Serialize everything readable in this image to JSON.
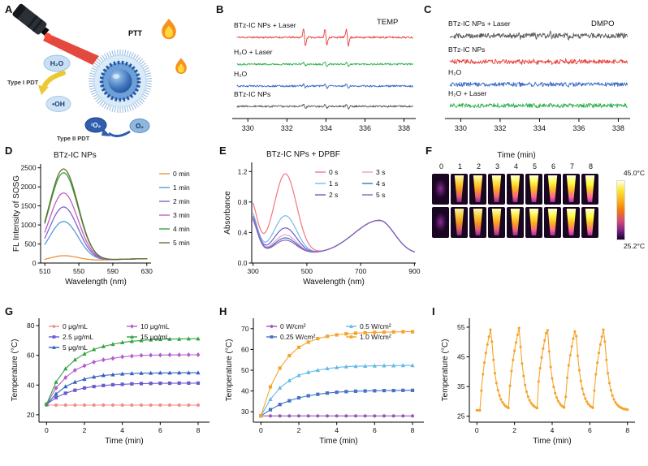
{
  "panels": {
    "A": {
      "letter": "A",
      "labels": {
        "ptt": "PTT",
        "h2o": "H₂O",
        "type1": "Type I PDT",
        "oh": "•OH",
        "singlet_o2": "¹O₂",
        "o2": "O₂",
        "type2": "Type II PDT"
      }
    },
    "B": {
      "letter": "B"
    },
    "C": {
      "letter": "C"
    },
    "D": {
      "letter": "D"
    },
    "E": {
      "letter": "E"
    },
    "F": {
      "letter": "F"
    },
    "G": {
      "letter": "G"
    },
    "H": {
      "letter": "H"
    },
    "I": {
      "letter": "I"
    }
  },
  "chart_data": [
    {
      "panel": "B",
      "type": "line",
      "subtype": "esr-spectra",
      "annotation": "TEMP",
      "xlim": [
        329.2,
        338.6
      ],
      "xlabel_ticks": [
        330,
        332,
        334,
        336,
        338
      ],
      "peaks": [
        332.9,
        334.0,
        335.1
      ],
      "traces": [
        {
          "label": "BTz-IC NPs + Laser",
          "color": "#e8403a",
          "amp": 30,
          "noise": 1.1
        },
        {
          "label": "H₂O + Laser",
          "color": "#2eb04c",
          "amp": 7,
          "noise": 1.1
        },
        {
          "label": "H₂O",
          "color": "#3a6cc6",
          "amp": 7,
          "noise": 1.1
        },
        {
          "label": "BTz-IC NPs",
          "color": "#5a5a5a",
          "amp": 7,
          "noise": 1.1
        }
      ]
    },
    {
      "panel": "C",
      "type": "line",
      "subtype": "esr-spectra",
      "annotation": "DMPO",
      "xlim": [
        329.2,
        338.6
      ],
      "xlabel_ticks": [
        330,
        332,
        334,
        336,
        338
      ],
      "peaks": [
        333.0,
        333.8,
        334.6,
        335.4
      ],
      "traces": [
        {
          "label": "BTz-IC NPs + Laser",
          "color": "#5a5a5a",
          "amp": 8,
          "noise": 3.2
        },
        {
          "label": "BTz-IC NPs",
          "color": "#e8403a",
          "amp": 5,
          "noise": 2.8
        },
        {
          "label": "H₂O",
          "color": "#3a6cc6",
          "amp": 3,
          "noise": 2.6
        },
        {
          "label": "H₂O + Laser",
          "color": "#2eb04c",
          "amp": 3,
          "noise": 2.6
        }
      ]
    },
    {
      "panel": "D",
      "type": "line",
      "title": "BTz-IC NPs",
      "xlabel": "Wavelength (nm)",
      "ylabel": "FL Intensity of SOSG",
      "xlim": [
        505,
        635
      ],
      "ylim": [
        0,
        2600
      ],
      "xticks": [
        510,
        550,
        590,
        630
      ],
      "yticks": [
        0,
        500,
        1000,
        1500,
        2000,
        2500
      ],
      "peak_wavelength": 532,
      "series": [
        {
          "name": "0 min",
          "color": "#f0923b",
          "peak": 150
        },
        {
          "name": "1 min",
          "color": "#5b9bd5",
          "peak": 1050
        },
        {
          "name": "2 min",
          "color": "#8661d1",
          "peak": 1430
        },
        {
          "name": "3 min",
          "color": "#c45ec4",
          "peak": 1800
        },
        {
          "name": "4 min",
          "color": "#35a342",
          "peak": 2330
        },
        {
          "name": "5 min",
          "color": "#6b6d2c",
          "peak": 2430
        }
      ]
    },
    {
      "panel": "E",
      "type": "line",
      "title": "BTz-IC NPs + DPBF",
      "xlabel": "Wavelength (nm)",
      "ylabel": "Absorbance",
      "xlim": [
        295,
        905
      ],
      "ylim": [
        0,
        1.32
      ],
      "ydecimals": 1,
      "xticks": [
        300,
        500,
        700,
        900
      ],
      "yticks": [
        0,
        0.4,
        0.8,
        1.2
      ],
      "dpbf_peak_nm": 420,
      "nir_peak_nm": 770,
      "nir_abs": 0.44,
      "series": [
        {
          "name": "0 s",
          "color": "#f2777f",
          "peak": 1.17
        },
        {
          "name": "1 s",
          "color": "#7ab8e8",
          "peak": 0.62
        },
        {
          "name": "2 s",
          "color": "#6a5ccd",
          "peak": 0.46
        },
        {
          "name": "3 s",
          "color": "#ef9ec4",
          "peak": 0.37
        },
        {
          "name": "4 s",
          "color": "#4472c4",
          "peak": 0.33
        },
        {
          "name": "5 s",
          "color": "#8a63b8",
          "peak": 0.3
        }
      ]
    },
    {
      "panel": "F",
      "type": "heatmap",
      "subtype": "thermal-images",
      "title": "Time (min)",
      "times": [
        "0",
        "1",
        "2",
        "3",
        "4",
        "5",
        "6",
        "7",
        "8"
      ],
      "rows": 2,
      "scale_max": "45.0°C",
      "scale_min": "25.2°C"
    },
    {
      "panel": "G",
      "type": "line",
      "xlabel": "Time (min)",
      "ylabel": "Temperature (°C)",
      "xlim": [
        -0.4,
        8.6
      ],
      "ylim": [
        15,
        85
      ],
      "xticks": [
        0,
        2,
        4,
        6,
        8
      ],
      "yticks": [
        20,
        40,
        60,
        80
      ],
      "t_step": 0.5,
      "series": [
        {
          "name": "0 μg/mL",
          "color": "#f08d8d",
          "marker": "circle",
          "values": [
            26.5,
            26.5,
            26.5,
            26.5,
            26.5,
            26.5,
            26.5,
            26.5,
            26.5,
            26.5,
            26.5,
            26.5,
            26.5,
            26.5,
            26.5,
            26.5,
            26.5
          ]
        },
        {
          "name": "2.5 μg/mL",
          "color": "#6a5acd",
          "marker": "square",
          "values": [
            27,
            31.5,
            34.5,
            36.5,
            38,
            39,
            39.7,
            40.2,
            40.5,
            40.8,
            41,
            41.1,
            41.2,
            41.2,
            41.3,
            41.3,
            41.3
          ]
        },
        {
          "name": "5 μg/mL",
          "color": "#3060c0",
          "marker": "triangle",
          "values": [
            27,
            34,
            39,
            42,
            44,
            45.5,
            46.5,
            47,
            47.5,
            47.8,
            48,
            48.1,
            48.2,
            48.2,
            48.3,
            48.3,
            48.3
          ]
        },
        {
          "name": "10 μg/mL",
          "color": "#b45ccc",
          "marker": "diamond",
          "values": [
            27,
            38,
            45,
            50,
            53,
            55.5,
            57,
            58,
            59,
            59.5,
            60,
            60.1,
            60.2,
            60.3,
            60.3,
            60.4,
            60.4
          ]
        },
        {
          "name": "15 μg/mL",
          "color": "#35a342",
          "marker": "triangle",
          "values": [
            27,
            42,
            51,
            57,
            61,
            64,
            66,
            67.5,
            68.7,
            69.5,
            70,
            70.5,
            70.8,
            71,
            71,
            71.2,
            71.2
          ]
        }
      ]
    },
    {
      "panel": "H",
      "type": "line",
      "xlabel": "Time (min)",
      "ylabel": "Temperature (°C)",
      "xlim": [
        -0.4,
        8.6
      ],
      "ylim": [
        25,
        75
      ],
      "xticks": [
        0,
        2,
        4,
        6,
        8
      ],
      "yticks": [
        30,
        40,
        50,
        60,
        70
      ],
      "t_step": 0.5,
      "series": [
        {
          "name": "0 W/cm²",
          "color": "#9b59b6",
          "marker": "circle",
          "values": [
            28,
            28,
            28,
            28,
            28,
            28,
            28,
            28,
            28,
            28,
            28,
            28,
            28,
            28,
            28,
            28,
            28
          ]
        },
        {
          "name": "0.25 W/cm²",
          "color": "#4472c4",
          "marker": "square",
          "values": [
            28,
            31,
            33.5,
            35.3,
            36.7,
            37.7,
            38.4,
            39,
            39.4,
            39.7,
            39.9,
            40,
            40.1,
            40.2,
            40.2,
            40.3,
            40.3
          ]
        },
        {
          "name": "0.5 W/cm²",
          "color": "#62b8e8",
          "marker": "triangle",
          "values": [
            28,
            36,
            41.5,
            45,
            47.5,
            49,
            50,
            50.8,
            51.3,
            51.7,
            51.9,
            52,
            52.1,
            52.2,
            52.2,
            52.3,
            52.3
          ]
        },
        {
          "name": "1.0 W/cm²",
          "color": "#f5a52c",
          "marker": "square",
          "values": [
            28,
            42,
            51,
            57,
            61,
            63.5,
            65.2,
            66.3,
            67,
            67.5,
            67.8,
            68,
            68.2,
            68.3,
            68.4,
            68.5,
            68.5
          ]
        }
      ]
    },
    {
      "panel": "I",
      "type": "line",
      "subtype": "photothermal-cycles",
      "xlabel": "Time (min)",
      "ylabel": "Temperature (°C)",
      "xlim": [
        -0.4,
        8.4
      ],
      "ylim": [
        23,
        58
      ],
      "xticks": [
        0,
        2,
        4,
        6,
        8
      ],
      "yticks": [
        25,
        35,
        45,
        55
      ],
      "color": "#f5a52c",
      "base_temp": 27,
      "peak_temp": 55,
      "cycles": 5,
      "period_min": 1.5,
      "first_on": 0.2,
      "heat_min": 0.55
    }
  ]
}
